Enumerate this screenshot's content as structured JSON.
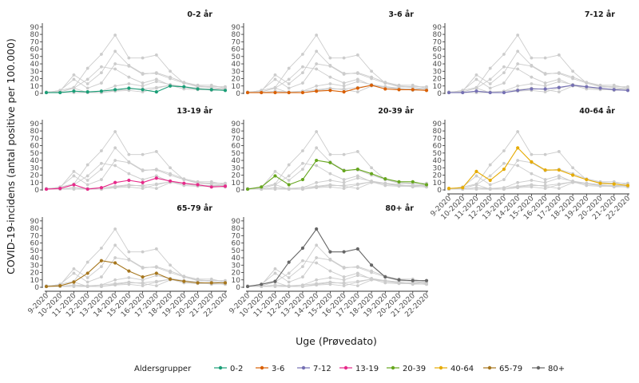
{
  "chart_data": {
    "type": "line",
    "xlabel": "Uge (Prøvedato)",
    "ylabel": "COVID-19-incidens (antal positive per 100.000)",
    "x": [
      "9-2020",
      "10-2020",
      "11-2020",
      "12-2020",
      "13-2020",
      "14-2020",
      "15-2020",
      "16-2020",
      "17-2020",
      "18-2020",
      "19-2020",
      "20-2020",
      "21-2020",
      "22-2020"
    ],
    "yticks": [
      0,
      10,
      20,
      30,
      40,
      50,
      60,
      70,
      80,
      90
    ],
    "ylim": [
      0,
      92
    ],
    "legend_title": "Aldersgrupper",
    "legend_position": "bottom",
    "background_color": "#cccccc",
    "series": [
      {
        "name": "0-2",
        "color": "#1b9e77",
        "values": [
          1,
          1,
          3,
          2,
          3,
          5,
          7,
          5,
          2,
          10,
          9,
          6,
          5,
          4
        ]
      },
      {
        "name": "3-6",
        "color": "#d95f02",
        "values": [
          1,
          1,
          1,
          1,
          1,
          3,
          4,
          2,
          7,
          11,
          6,
          5,
          5,
          4
        ]
      },
      {
        "name": "7-12",
        "color": "#7570b3",
        "values": [
          1,
          1,
          3,
          1,
          1,
          4,
          6,
          6,
          8,
          11,
          9,
          7,
          5,
          4
        ]
      },
      {
        "name": "13-19",
        "color": "#e7298a",
        "values": [
          1,
          2,
          7,
          1,
          3,
          10,
          13,
          10,
          16,
          12,
          9,
          7,
          4,
          5
        ]
      },
      {
        "name": "20-39",
        "color": "#66a61e",
        "values": [
          1,
          4,
          19,
          7,
          14,
          40,
          37,
          26,
          28,
          22,
          15,
          11,
          11,
          7
        ]
      },
      {
        "name": "40-64",
        "color": "#e6ab02",
        "values": [
          2,
          3,
          25,
          13,
          28,
          57,
          38,
          27,
          27,
          20,
          14,
          9,
          8,
          6
        ]
      },
      {
        "name": "65-79",
        "color": "#a6761d",
        "values": [
          1,
          2,
          7,
          19,
          36,
          33,
          22,
          14,
          19,
          11,
          8,
          6,
          6,
          6
        ]
      },
      {
        "name": "80+",
        "color": "#666666",
        "values": [
          1,
          4,
          8,
          34,
          53,
          79,
          48,
          48,
          52,
          30,
          14,
          10,
          9,
          9
        ]
      }
    ],
    "panels": [
      {
        "title": "0-2 år",
        "series": "0-2"
      },
      {
        "title": "3-6 år",
        "series": "3-6"
      },
      {
        "title": "7-12 år",
        "series": "7-12"
      },
      {
        "title": "13-19 år",
        "series": "13-19"
      },
      {
        "title": "20-39 år",
        "series": "20-39"
      },
      {
        "title": "40-64 år",
        "series": "40-64"
      },
      {
        "title": "65-79 år",
        "series": "65-79"
      },
      {
        "title": "80+ år",
        "series": "80+"
      }
    ]
  }
}
